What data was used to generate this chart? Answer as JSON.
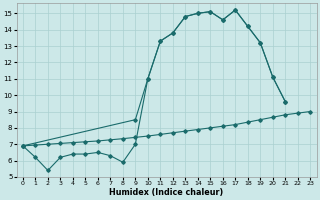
{
  "xlabel": "Humidex (Indice chaleur)",
  "bg_color": "#cce8e8",
  "grid_color": "#aad0d0",
  "line_color": "#1a6b6b",
  "xlim": [
    -0.5,
    23.5
  ],
  "ylim": [
    5.0,
    15.6
  ],
  "yticks": [
    5,
    6,
    7,
    8,
    9,
    10,
    11,
    12,
    13,
    14,
    15
  ],
  "xticks": [
    0,
    1,
    2,
    3,
    4,
    5,
    6,
    7,
    8,
    9,
    10,
    11,
    12,
    13,
    14,
    15,
    16,
    17,
    18,
    19,
    20,
    21,
    22,
    23
  ],
  "line1_x": [
    0,
    1,
    2,
    3,
    4,
    5,
    6,
    7,
    8,
    9,
    10,
    11,
    12,
    13,
    14,
    15,
    16,
    17,
    18,
    19,
    20,
    21
  ],
  "line1_y": [
    6.9,
    6.2,
    5.4,
    6.2,
    6.4,
    6.4,
    6.5,
    6.3,
    5.9,
    7.0,
    11.0,
    13.3,
    13.8,
    14.8,
    15.0,
    15.1,
    14.6,
    15.2,
    14.2,
    13.2,
    11.1,
    9.6
  ],
  "line2_x": [
    0,
    9,
    10,
    11,
    12,
    13,
    14,
    15,
    16,
    17,
    18,
    19,
    20,
    21
  ],
  "line2_y": [
    6.9,
    8.5,
    11.0,
    13.3,
    13.8,
    14.8,
    15.0,
    15.1,
    14.6,
    15.2,
    14.2,
    13.2,
    11.1,
    9.6
  ],
  "line3_x": [
    0,
    1,
    2,
    3,
    4,
    5,
    6,
    7,
    8,
    9,
    10,
    11,
    12,
    13,
    14,
    15,
    16,
    17,
    18,
    19,
    20,
    21,
    22,
    23
  ],
  "line3_y": [
    6.9,
    6.95,
    7.0,
    7.05,
    7.1,
    7.15,
    7.2,
    7.27,
    7.34,
    7.42,
    7.5,
    7.6,
    7.7,
    7.8,
    7.9,
    8.0,
    8.1,
    8.2,
    8.35,
    8.5,
    8.65,
    8.8,
    8.9,
    9.0
  ]
}
